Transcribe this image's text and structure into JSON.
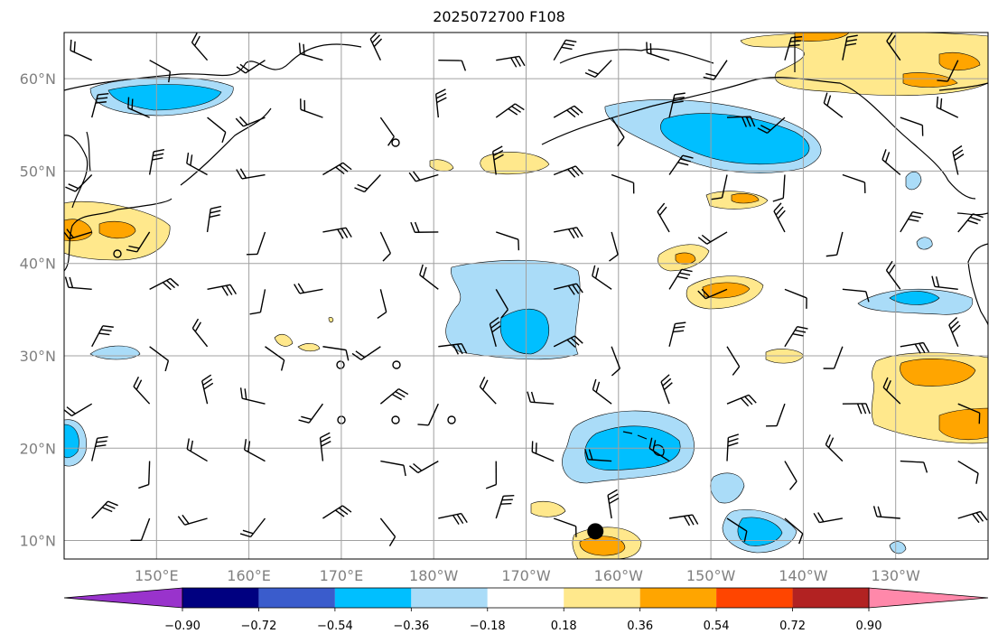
{
  "title": "2025072700 F108",
  "map": {
    "lon_range": [
      140,
      240
    ],
    "lat_range": [
      8,
      65
    ],
    "lat_ticks": [
      {
        "value": 10,
        "label": "10°N"
      },
      {
        "value": 20,
        "label": "20°N"
      },
      {
        "value": 30,
        "label": "30°N"
      },
      {
        "value": 40,
        "label": "40°N"
      },
      {
        "value": 50,
        "label": "50°N"
      },
      {
        "value": 60,
        "label": "60°N"
      }
    ],
    "lon_ticks": [
      {
        "value": 150,
        "label": "150°E"
      },
      {
        "value": 160,
        "label": "160°E"
      },
      {
        "value": 170,
        "label": "170°E"
      },
      {
        "value": 180,
        "label": "180°W"
      },
      {
        "value": 190,
        "label": "170°W"
      },
      {
        "value": 200,
        "label": "160°W"
      },
      {
        "value": 210,
        "label": "150°W"
      },
      {
        "value": 220,
        "label": "140°W"
      },
      {
        "value": 230,
        "label": "130°W"
      }
    ],
    "gridlines": true,
    "marker": {
      "lon": 197.5,
      "lat": 11.0,
      "color": "#000000"
    }
  },
  "colorbar": {
    "colors": [
      "#9933cc",
      "#000080",
      "#3a5ccc",
      "#00bfff",
      "#aadcf8",
      "#ffffff",
      "#ffe88c",
      "#ffa500",
      "#ff4500",
      "#b22222",
      "#ff88aa"
    ],
    "tick_labels": [
      "−0.90",
      "−0.72",
      "−0.54",
      "−0.36",
      "−0.18",
      "0.18",
      "0.36",
      "0.54",
      "0.72",
      "0.90"
    ],
    "extend": "both"
  },
  "fill_colors": {
    "light_blue": "#aadcf8",
    "blue": "#00bfff",
    "light_yellow": "#ffe88c",
    "orange": "#ffa500"
  }
}
